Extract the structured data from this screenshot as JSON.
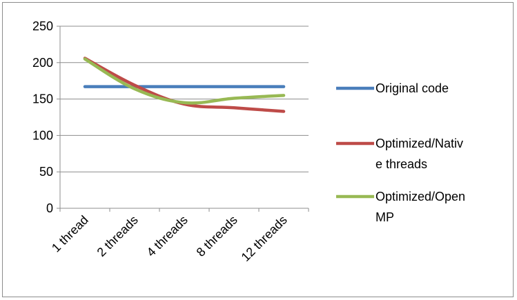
{
  "chart_data": {
    "type": "line",
    "title": "",
    "xlabel": "",
    "ylabel": "",
    "categories": [
      "1    thread",
      "2  threads",
      "4  threads",
      "8  threads",
      "12 threads"
    ],
    "ylim": [
      0,
      250
    ],
    "yticks": [
      0,
      50,
      100,
      150,
      200,
      250
    ],
    "grid": "horizontal",
    "legend_position": "right",
    "series": [
      {
        "name": "Original code",
        "color": "#4a7ebb",
        "values": [
          167,
          167,
          167,
          167,
          167
        ]
      },
      {
        "name": "Optimized/Native threads",
        "legend_lines": [
          "Optimized/Nativ",
          "e threads"
        ],
        "color": "#be4b48",
        "values": [
          206,
          169,
          143,
          138,
          133
        ]
      },
      {
        "name": "Optimized/OpenMP",
        "legend_lines": [
          "Optimized/Open",
          "MP"
        ],
        "color": "#98b954",
        "values": [
          205,
          164,
          145,
          151,
          155
        ]
      }
    ]
  }
}
